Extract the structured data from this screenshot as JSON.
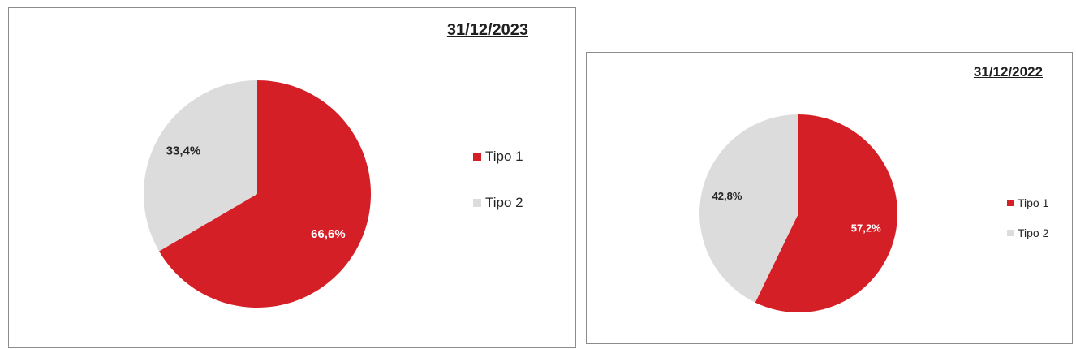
{
  "chart_data": [
    {
      "type": "pie",
      "title": "31/12/2023",
      "categories": [
        "Tipo 1",
        "Tipo 2"
      ],
      "values": [
        66.6,
        33.4
      ],
      "data_labels": [
        "66,6%",
        "33,4%"
      ],
      "colors": [
        "#d51f26",
        "#dcdcdc"
      ],
      "label_colors": [
        "#ffffff",
        "#262626"
      ],
      "legend_position": "right"
    },
    {
      "type": "pie",
      "title": "31/12/2022",
      "categories": [
        "Tipo 1",
        "Tipo 2"
      ],
      "values": [
        57.2,
        42.8
      ],
      "data_labels": [
        "57,2%",
        "42,8%"
      ],
      "colors": [
        "#d51f26",
        "#dcdcdc"
      ],
      "label_colors": [
        "#ffffff",
        "#262626"
      ],
      "legend_position": "right"
    }
  ]
}
